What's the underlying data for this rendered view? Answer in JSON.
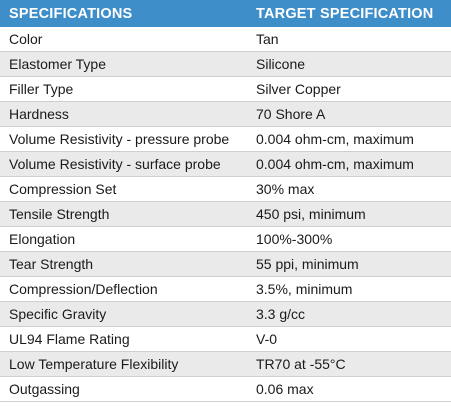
{
  "table": {
    "headers": [
      "SPECIFICATIONS",
      "TARGET SPECIFICATION"
    ],
    "header_color": "#3d8ec9",
    "zebra_color": "#eaeaea",
    "rows": [
      {
        "spec": "Color",
        "value": "Tan"
      },
      {
        "spec": "Elastomer Type",
        "value": "Silicone"
      },
      {
        "spec": "Filler Type",
        "value": "Silver Copper"
      },
      {
        "spec": "Hardness",
        "value": "70 Shore A"
      },
      {
        "spec": "Volume Resistivity - pressure probe",
        "value": "0.004 ohm-cm, maximum"
      },
      {
        "spec": "Volume Resistivity - surface probe",
        "value": "0.004 ohm-cm, maximum"
      },
      {
        "spec": "Compression Set",
        "value": "30% max"
      },
      {
        "spec": "Tensile Strength",
        "value": "450 psi, minimum"
      },
      {
        "spec": "Elongation",
        "value": "100%-300%"
      },
      {
        "spec": "Tear Strength",
        "value": "55 ppi, minimum"
      },
      {
        "spec": "Compression/Deflection",
        "value": "3.5%, minimum"
      },
      {
        "spec": "Specific Gravity",
        "value": "3.3 g/cc"
      },
      {
        "spec": "UL94 Flame Rating",
        "value": "V-0"
      },
      {
        "spec": "Low Temperature Flexibility",
        "value": "TR70 at -55°C"
      },
      {
        "spec": "Outgassing",
        "value": "0.06 max"
      }
    ]
  }
}
